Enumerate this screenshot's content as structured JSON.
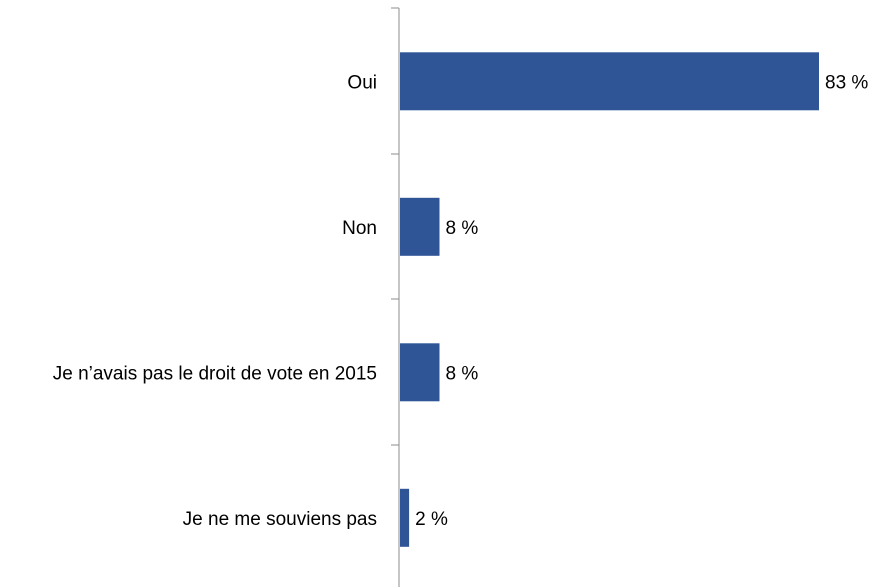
{
  "chart_data": {
    "type": "bar",
    "orientation": "horizontal",
    "categories": [
      "Oui",
      "Non",
      "Je n’avais pas le droit de vote en 2015",
      "Je ne me souviens pas"
    ],
    "values": [
      83,
      8,
      8,
      2
    ],
    "value_labels": [
      "83 %",
      "8 %",
      "8 %",
      "2 %"
    ],
    "unit": "%",
    "xlim": [
      0,
      83
    ],
    "grid": false,
    "legend": "none",
    "colors": {
      "bar": "#2F5597",
      "axis": "#8C8C8C",
      "text": "#000000"
    }
  }
}
